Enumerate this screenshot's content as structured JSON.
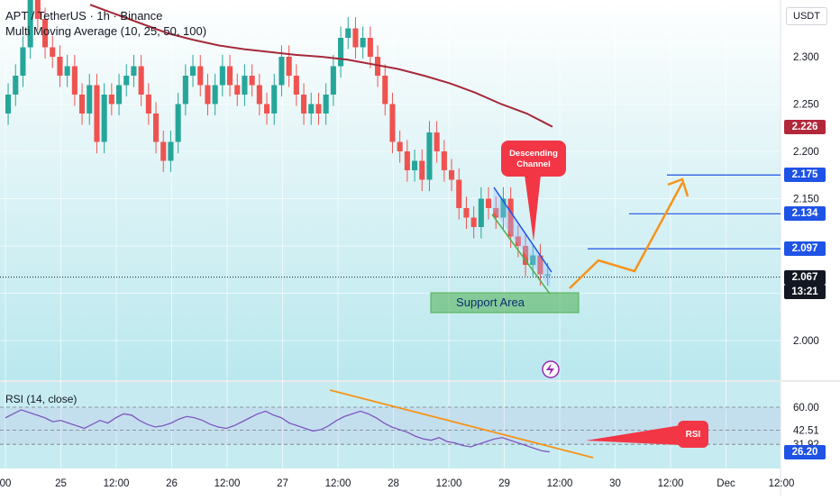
{
  "header": {
    "symbol": "APT / TetherUS · 1h · Binance",
    "indicator": "Multi Moving Average (10, 25, 50, 100)",
    "currency": "USDT"
  },
  "rsi_label": "RSI (14, close)",
  "annotations": {
    "descending_channel": "Descending Channel",
    "support_area": "Support Area",
    "rsi": "RSI"
  },
  "price_tags": [
    {
      "name": "ma-tag",
      "value": "2.226",
      "color": "#b2283b"
    },
    {
      "name": "level-2175",
      "value": "2.175",
      "color": "#1e53e5"
    },
    {
      "name": "level-2134",
      "value": "2.134",
      "color": "#1e53e5"
    },
    {
      "name": "level-2097",
      "value": "2.097",
      "color": "#1e53e5"
    },
    {
      "name": "current-price",
      "value": "2.067",
      "color": "#131722"
    },
    {
      "name": "countdown",
      "value": "13:21",
      "color": "#131722"
    }
  ],
  "rsi_tags": [
    {
      "value": "26.20",
      "color": "#1e53e5"
    }
  ],
  "colors": {
    "up": "#26a69a",
    "down": "#ef5350",
    "ma": "#a52a3a",
    "rsi": "#7e57c2",
    "trend": "#f7931a",
    "level": "#1e53e5",
    "support": "#4caf50",
    "callout": "#f23645"
  },
  "chart_data": {
    "type": "candlestick",
    "price_axis": {
      "ticks": [
        2.3,
        2.25,
        2.2,
        2.15,
        2.1,
        2.05,
        2.0
      ],
      "labels": [
        "2.300",
        "2.250",
        "2.200",
        "2.150",
        "",
        "",
        "2.000"
      ],
      "range": [
        1.96,
        2.36
      ]
    },
    "time_axis": {
      "labels": [
        "00",
        "25",
        "12:00",
        "26",
        "12:00",
        "27",
        "12:00",
        "28",
        "12:00",
        "29",
        "12:00",
        "30",
        "12:00",
        "Dec",
        "12:00"
      ]
    },
    "series": [
      {
        "name": "Multi Moving Average",
        "type": "line",
        "values": [
          2.355,
          2.345,
          2.335,
          2.325,
          2.318,
          2.312,
          2.308,
          2.305,
          2.302,
          2.3,
          2.297,
          2.292,
          2.287,
          2.28,
          2.272,
          2.262,
          2.25,
          2.24,
          2.226
        ]
      },
      {
        "name": "Close",
        "type": "candles",
        "values": [
          2.26,
          2.28,
          2.31,
          2.36,
          2.34,
          2.31,
          2.3,
          2.28,
          2.29,
          2.26,
          2.24,
          2.27,
          2.21,
          2.26,
          2.25,
          2.27,
          2.28,
          2.29,
          2.26,
          2.24,
          2.21,
          2.19,
          2.21,
          2.25,
          2.28,
          2.29,
          2.27,
          2.25,
          2.27,
          2.29,
          2.27,
          2.26,
          2.28,
          2.27,
          2.25,
          2.24,
          2.27,
          2.3,
          2.28,
          2.26,
          2.24,
          2.25,
          2.24,
          2.26,
          2.29,
          2.32,
          2.33,
          2.31,
          2.32,
          2.3,
          2.28,
          2.25,
          2.21,
          2.2,
          2.18,
          2.19,
          2.17,
          2.22,
          2.2,
          2.18,
          2.17,
          2.14,
          2.13,
          2.12,
          2.15,
          2.14,
          2.13,
          2.15,
          2.11,
          2.1,
          2.08,
          2.09,
          2.07,
          2.07
        ]
      }
    ],
    "levels": [
      2.175,
      2.134,
      2.097
    ],
    "current_price": 2.067,
    "rsi": {
      "name": "RSI (14, close)",
      "ticks": [
        60.0,
        42.51,
        31.92,
        26.2
      ],
      "values": [
        52,
        55,
        58,
        56,
        54,
        52,
        49,
        50,
        48,
        46,
        44,
        47,
        50,
        48,
        52,
        55,
        54,
        50,
        47,
        45,
        46,
        48,
        51,
        53,
        52,
        50,
        47,
        45,
        44,
        46,
        49,
        52,
        55,
        57,
        54,
        52,
        48,
        46,
        44,
        42,
        43,
        46,
        50,
        53,
        55,
        57,
        55,
        52,
        48,
        45,
        43,
        41,
        38,
        36,
        35,
        37,
        34,
        33,
        31,
        30,
        32,
        34,
        36,
        37,
        35,
        33,
        31,
        29,
        27,
        26.2
      ]
    }
  }
}
